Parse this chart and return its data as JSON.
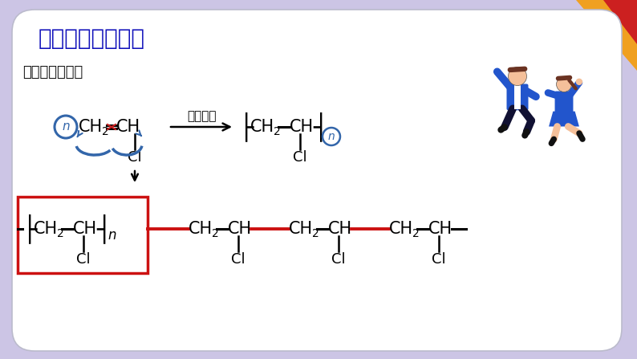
{
  "bg_outer": "#ccc5e5",
  "bg_inner": "#ffffff",
  "title": "一、加成聚合反应",
  "title_color": "#1111bb",
  "subtitle": "聚氯乙烯的合成",
  "arrow_condition": "一定条件",
  "red_color": "#cc1111",
  "blue_color": "#3366aa",
  "corner_orange": "#f0a020",
  "corner_red": "#cc2020",
  "card_edge_color": "#bbbbcc"
}
